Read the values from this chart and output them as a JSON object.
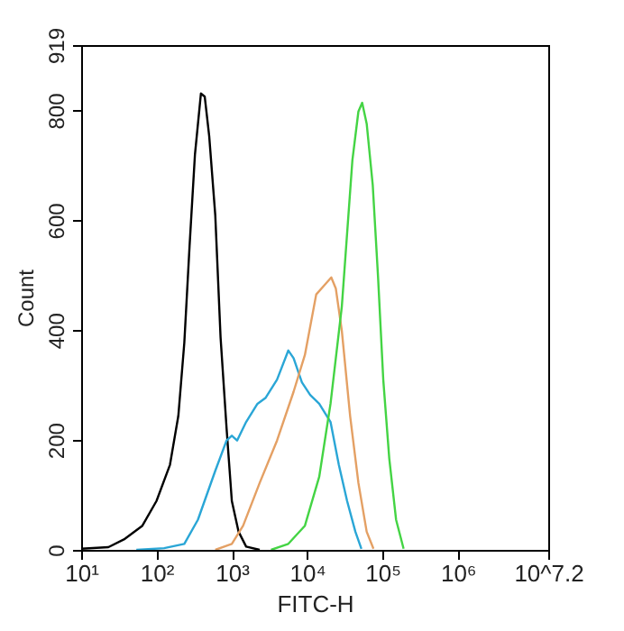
{
  "chart_data": {
    "type": "line",
    "xlabel": "FITC-H",
    "ylabel": "Count",
    "xlim": [
      10,
      15848932
    ],
    "ylim": [
      0,
      919
    ],
    "log": "x",
    "grid": false,
    "marker": "none",
    "line_style": "solid",
    "xticks": [
      {
        "value": 10,
        "label": "10¹"
      },
      {
        "value": 100,
        "label": "10²"
      },
      {
        "value": 1000,
        "label": "10³"
      },
      {
        "value": 10000,
        "label": "10⁴"
      },
      {
        "value": 100000,
        "label": "10⁵"
      },
      {
        "value": 1000000,
        "label": "10⁶"
      },
      {
        "value": 15848932,
        "label": "10^7.2"
      }
    ],
    "yticks": [
      0,
      200,
      400,
      600,
      800,
      919
    ],
    "series": [
      {
        "color": "#000000",
        "x": [
          10,
          23,
          38,
          65,
          100,
          151,
          195,
          234,
          275,
          324,
          389,
          437,
          501,
          603,
          708,
          851,
          1000,
          1230,
          1549,
          2344
        ],
        "values": [
          2,
          5,
          20,
          44,
          89,
          155,
          244,
          377,
          554,
          720,
          831,
          825,
          753,
          609,
          388,
          222,
          89,
          33,
          6,
          0
        ]
      },
      {
        "color": "#2aa6d6",
        "x": [
          54,
          126,
          234,
          355,
          603,
          851,
          1000,
          1175,
          1549,
          2188,
          2818,
          3981,
          5623,
          6607,
          8511,
          10965,
          14454,
          20417,
          26303,
          33884,
          43652,
          52481
        ],
        "values": [
          0,
          3,
          11,
          55,
          144,
          199,
          208,
          199,
          233,
          266,
          277,
          310,
          363,
          349,
          305,
          282,
          266,
          233,
          155,
          89,
          33,
          2
        ]
      },
      {
        "color": "#e4a064",
        "x": [
          603,
          1000,
          1413,
          2344,
          3981,
          6607,
          9333,
          13183,
          16982,
          20893,
          23988,
          28840,
          37154,
          47863,
          61660,
          75858
        ],
        "values": [
          0,
          11,
          44,
          122,
          199,
          288,
          355,
          465,
          482,
          496,
          476,
          399,
          244,
          122,
          33,
          2
        ]
      },
      {
        "color": "#44d444",
        "x": [
          3311,
          5623,
          9333,
          14454,
          20417,
          28840,
          33884,
          39811,
          47863,
          53703,
          61660,
          74131,
          87096,
          102329,
          123027,
          151356,
          190546
        ],
        "values": [
          0,
          11,
          44,
          133,
          266,
          443,
          576,
          709,
          798,
          814,
          776,
          665,
          499,
          310,
          166,
          55,
          2
        ]
      }
    ]
  }
}
